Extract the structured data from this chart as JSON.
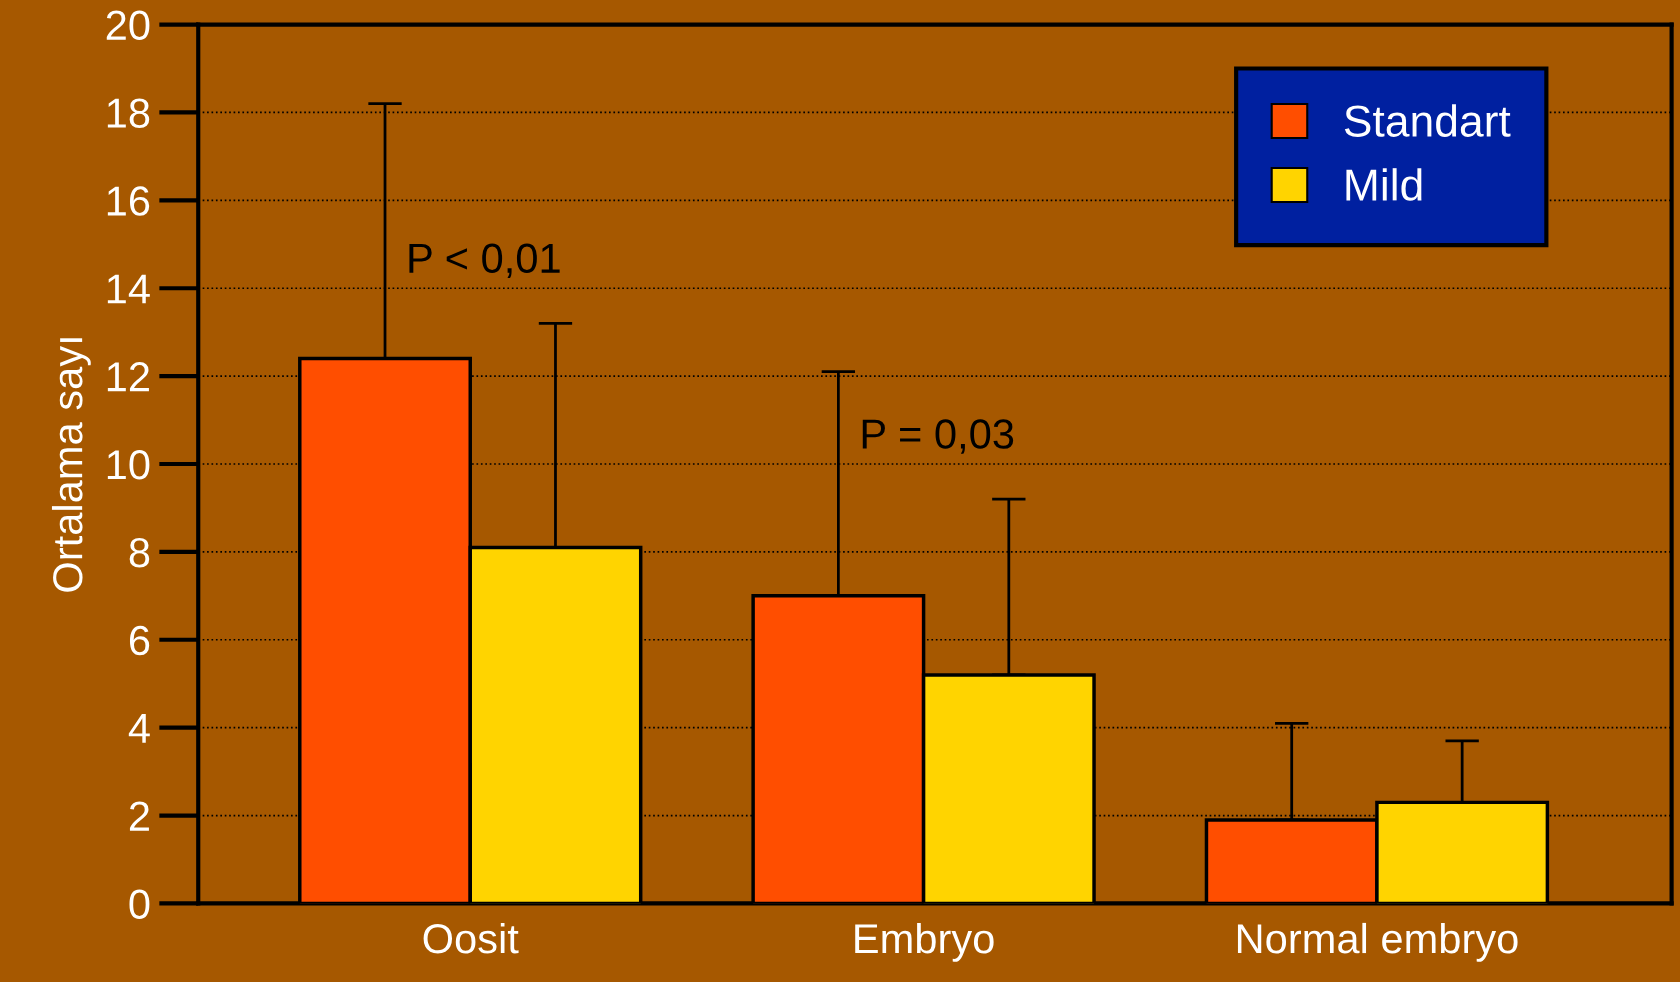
{
  "chart_data": {
    "type": "bar",
    "ylabel": "Ortalama sayı",
    "categories": [
      "Oosit",
      "Embryo",
      "Normal embryo"
    ],
    "series": [
      {
        "name": "Standart",
        "color": "#ff4e00",
        "values": [
          12.4,
          7.0,
          1.9
        ],
        "errors": [
          [
            12.4,
            18.2
          ],
          [
            7.0,
            12.1
          ],
          [
            1.9,
            4.1
          ]
        ]
      },
      {
        "name": "Mild",
        "color": "#ffd400",
        "values": [
          8.1,
          5.2,
          2.3
        ],
        "errors": [
          [
            8.1,
            13.2
          ],
          [
            5.2,
            9.2
          ],
          [
            2.3,
            3.7
          ]
        ]
      }
    ],
    "ylim": [
      0,
      20
    ],
    "yticks": [
      0,
      2,
      4,
      6,
      8,
      10,
      12,
      14,
      16,
      18,
      20
    ],
    "grid": "y",
    "legend": "top right",
    "annotations": [
      "P < 0,01",
      "P = 0,03"
    ]
  }
}
